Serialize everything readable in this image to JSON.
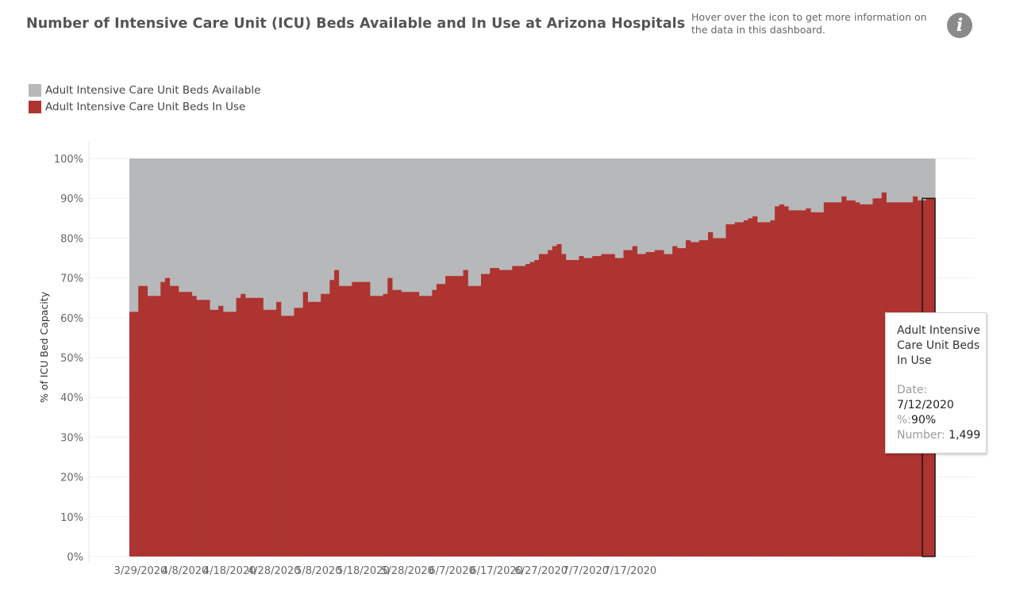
{
  "header": {
    "title": "Number of Intensive Care Unit (ICU) Beds Available and In Use at Arizona Hospitals",
    "info_text": "Hover over the icon to get more information on the data in this dashboard.",
    "info_icon": "info-icon"
  },
  "legend": {
    "items": [
      {
        "label": "Adult Intensive Care Unit Beds Available",
        "color": "#b6b8ba"
      },
      {
        "label": "Adult Intensive Care Unit Beds In Use",
        "color": "#ad3430"
      }
    ]
  },
  "tooltip": {
    "title": "Adult Intensive Care Unit Beds In Use",
    "date_label": "Date:",
    "date_value": "7/12/2020",
    "pct_label": "%:",
    "pct_value": "90%",
    "number_label": "Number:",
    "number_value": "1,499"
  },
  "chart_data": {
    "type": "area",
    "title": "",
    "ylabel": "% of ICU Bed Capacity",
    "xlabel": "",
    "ylim": [
      0,
      100
    ],
    "yticks": [
      0,
      10,
      20,
      30,
      40,
      50,
      60,
      70,
      80,
      90,
      100
    ],
    "ytick_labels": [
      "0%",
      "10%",
      "20%",
      "30%",
      "40%",
      "50%",
      "60%",
      "70%",
      "80%",
      "90%",
      "100%"
    ],
    "xticks": [
      "3/29/2020",
      "4/8/2020",
      "4/18/2020",
      "4/28/2020",
      "5/8/2020",
      "5/18/2020",
      "5/28/2020",
      "6/7/2020",
      "6/17/2020",
      "6/27/2020",
      "7/7/2020",
      "7/17/2020"
    ],
    "x_start": "3/27/2020",
    "x_end": "7/12/2020",
    "highlight_date": "7/12/2020",
    "grid": true,
    "legend_position": "top-left",
    "series": [
      {
        "name": "Adult Intensive Care Unit Beds Available",
        "color": "#b6b8ba",
        "note": "fills remainder to 100%"
      },
      {
        "name": "Adult Intensive Care Unit Beds In Use",
        "color": "#ad3430",
        "values": [
          61.5,
          61.5,
          68,
          68,
          65.5,
          65.5,
          65.5,
          69,
          70,
          68,
          68,
          66.5,
          66.5,
          66.5,
          65.5,
          64.5,
          64.5,
          64.5,
          62,
          62,
          63,
          61.5,
          61.5,
          61.5,
          65,
          66,
          65,
          65,
          65,
          65,
          62,
          62,
          62,
          64,
          60.5,
          60.5,
          60.5,
          62.5,
          62.5,
          66.5,
          64,
          64,
          64,
          66,
          66,
          69.5,
          72,
          68,
          68,
          68,
          69,
          69,
          69,
          69,
          65.5,
          65.5,
          65.5,
          66,
          70,
          67,
          67,
          66.5,
          66.5,
          66.5,
          66.5,
          65.5,
          65.5,
          65.5,
          67,
          68.5,
          68.5,
          70.5,
          70.5,
          70.5,
          70.5,
          72,
          68,
          68,
          68,
          71,
          71,
          72.5,
          72.5,
          72,
          72,
          72,
          73,
          73,
          73,
          73.5,
          74,
          74.5,
          76,
          76,
          77,
          78,
          78.5,
          76,
          74.5,
          74.5,
          74.5,
          75.5,
          75,
          75,
          75.5,
          75.5,
          76,
          76,
          76,
          75,
          75,
          77,
          77,
          78,
          76,
          76,
          76.5,
          76.5,
          77,
          77,
          76,
          76,
          78,
          77.5,
          77.5,
          79.5,
          79,
          79,
          79.5,
          79.5,
          81.5,
          80,
          80,
          80,
          83.5,
          83.5,
          84,
          84,
          84.5,
          85,
          85.5,
          84,
          84,
          84,
          84.5,
          88,
          88.5,
          88,
          87,
          87,
          87,
          87,
          87.5,
          86.5,
          86.5,
          86.5,
          89,
          89,
          89,
          89,
          90.5,
          89.5,
          89.5,
          89,
          88.5,
          88.5,
          88.5,
          90,
          90,
          91.5,
          89,
          89,
          89,
          89,
          89,
          89,
          90.5,
          89.5,
          89.5,
          90,
          90
        ]
      }
    ]
  }
}
